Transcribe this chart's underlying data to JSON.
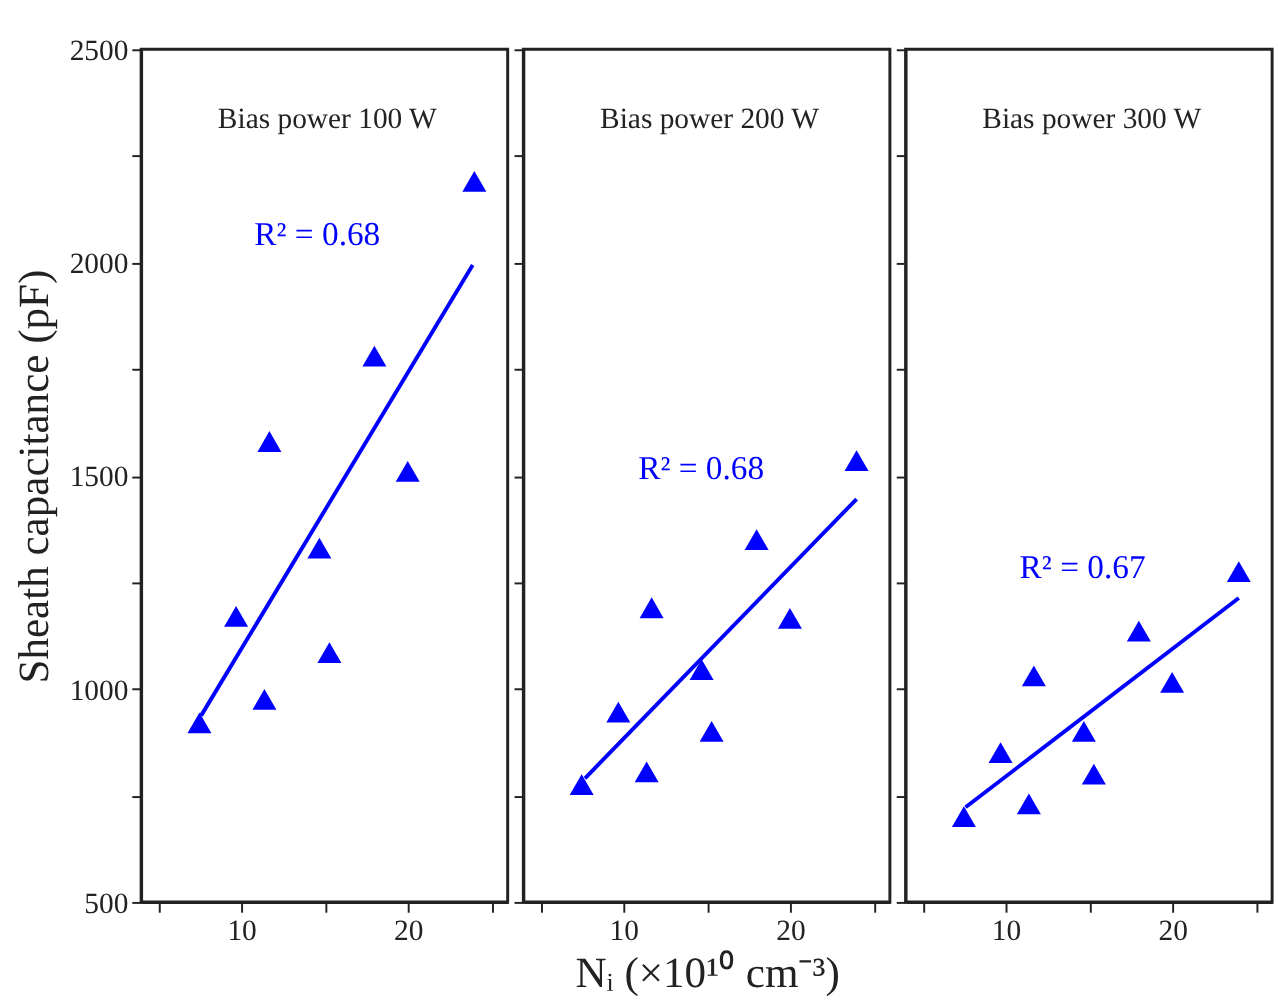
{
  "chart_data": [
    {
      "type": "scatter",
      "title": "Bias power 100 W",
      "ylabel": "Sheath capacitance (pF)",
      "xlim": [
        4,
        26
      ],
      "xticks": [
        {
          "value": 5,
          "label": null
        },
        10,
        {
          "value": 15,
          "label": null
        },
        20,
        {
          "value": 25,
          "label": null
        }
      ],
      "ylim": [
        500,
        2500
      ],
      "yticks": [
        500,
        {
          "value": 750,
          "label": null
        },
        1000,
        {
          "value": 1250,
          "label": null
        },
        1500,
        {
          "value": 1750,
          "label": null
        },
        2000,
        {
          "value": 2250,
          "label": null
        },
        2500
      ],
      "grid": false,
      "marker": "triangle",
      "annotations": [
        "R² = 0.68"
      ],
      "series": [
        {
          "color": "#0000ff",
          "x": [
            7.5,
            9.7,
            11.4,
            11.7,
            14.7,
            15.3,
            18.0,
            20.0,
            24.0
          ],
          "values": [
            920,
            1170,
            975,
            1580,
            1330,
            1085,
            1780,
            1510,
            2190
          ]
        },
        {
          "type": "line",
          "color": "#0000ff",
          "marker": "none",
          "x": [
            7.6,
            23.9
          ],
          "values": [
            937,
            1994
          ]
        }
      ]
    },
    {
      "type": "scatter",
      "title": "Bias power 200 W",
      "xlabel": "Nᵢ (×10¹⁰ cm⁻³)",
      "tick_labels": "x",
      "xlim": [
        4,
        26
      ],
      "xticks": [
        {
          "value": 5,
          "label": null
        },
        10,
        {
          "value": 15,
          "label": null
        },
        20,
        {
          "value": 25,
          "label": null
        }
      ],
      "ylim": [
        500,
        2500
      ],
      "yticks": [
        500,
        {
          "value": 750,
          "label": null
        },
        1000,
        {
          "value": 1250,
          "label": null
        },
        1500,
        {
          "value": 1750,
          "label": null
        },
        2000,
        {
          "value": 2250,
          "label": null
        },
        2500
      ],
      "grid": false,
      "marker": "triangle",
      "annotations": [
        "R² = 0.68"
      ],
      "series": [
        {
          "color": "#0000ff",
          "x": [
            7.5,
            9.7,
            11.4,
            11.7,
            14.7,
            15.3,
            18.0,
            20.0,
            24.0
          ],
          "values": [
            775,
            945,
            805,
            1190,
            1045,
            900,
            1350,
            1165,
            1535
          ]
        },
        {
          "type": "line",
          "color": "#0000ff",
          "marker": "none",
          "x": [
            7.7,
            24.0
          ],
          "values": [
            790,
            1445
          ]
        }
      ]
    },
    {
      "type": "scatter",
      "title": "Bias power 300 W",
      "tick_labels": "x",
      "xlim": [
        4,
        26
      ],
      "xticks": [
        {
          "value": 5,
          "label": null
        },
        10,
        {
          "value": 15,
          "label": null
        },
        20,
        {
          "value": 25,
          "label": null
        }
      ],
      "ylim": [
        500,
        2500
      ],
      "yticks": [
        500,
        {
          "value": 750,
          "label": null
        },
        1000,
        {
          "value": 1250,
          "label": null
        },
        1500,
        {
          "value": 1750,
          "label": null
        },
        2000,
        {
          "value": 2250,
          "label": null
        },
        2500
      ],
      "grid": false,
      "marker": "triangle",
      "annotations": [
        "R² = 0.67"
      ],
      "series": [
        {
          "color": "#0000ff",
          "x": [
            7.5,
            9.7,
            11.4,
            11.7,
            14.7,
            15.3,
            18.0,
            20.0,
            24.0
          ],
          "values": [
            700,
            850,
            730,
            1030,
            900,
            800,
            1135,
            1015,
            1275
          ]
        },
        {
          "type": "line",
          "color": "#0000ff",
          "marker": "none",
          "x": [
            7.6,
            24.0
          ],
          "values": [
            722,
            1213
          ]
        }
      ]
    }
  ]
}
